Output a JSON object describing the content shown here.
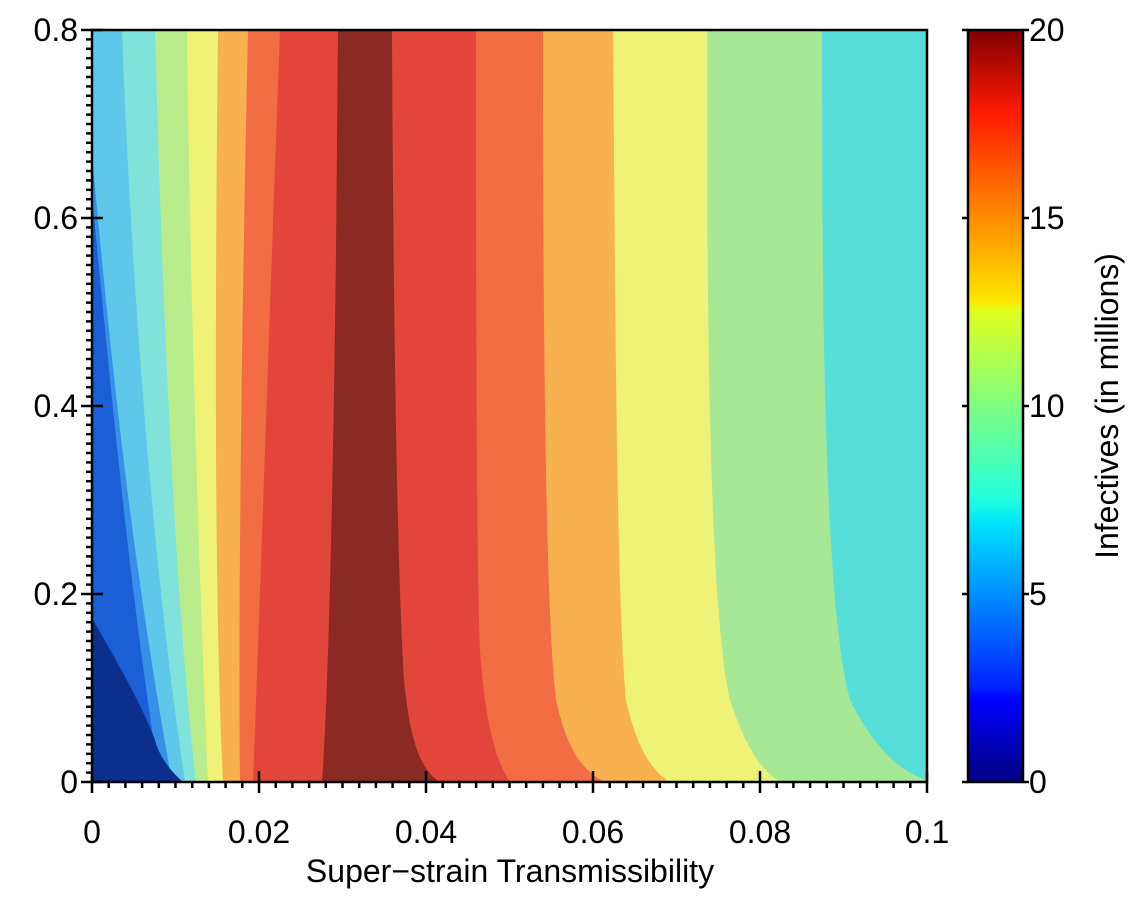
{
  "chart_data": {
    "type": "heatmap",
    "subtype": "filled-contour",
    "title": "",
    "xlabel": "Super−strain Transmissibility",
    "ylabel": "",
    "xlim": [
      0,
      0.1
    ],
    "ylim": [
      0,
      0.8
    ],
    "x_ticks": [
      0,
      0.02,
      0.04,
      0.06,
      0.08,
      0.1
    ],
    "x_tick_labels": [
      "0",
      "0.02",
      "0.04",
      "0.06",
      "0.08",
      "0.1"
    ],
    "y_ticks": [
      0,
      0.2,
      0.4,
      0.6,
      0.8
    ],
    "y_tick_labels": [
      "0",
      "0.2",
      "0.4",
      "0.6",
      "0.8"
    ],
    "colorbar": {
      "label": "Infectives (in millions)",
      "range": [
        0,
        20
      ],
      "ticks": [
        0,
        5,
        10,
        15,
        20
      ],
      "tick_labels": [
        "0",
        "5",
        "10",
        "15",
        "20"
      ],
      "colormap": "jet",
      "colors": [
        "#0c2f8d",
        "#1a5fd6",
        "#3790e8",
        "#5ec7ea",
        "#7fe3dc",
        "#a6e895",
        "#eef277",
        "#f8b150",
        "#f26d44",
        "#e2463a",
        "#8b2a22"
      ]
    },
    "regions": [
      {
        "level": 8,
        "color": "#56dfd8",
        "boundary": [
          [
            0.1,
            0.8
          ],
          [
            0.1,
            0.0
          ],
          [
            0.088,
            0.0
          ]
        ]
      },
      {
        "level": 9.5,
        "color": "#a6e895",
        "boundary": [
          [
            0.088,
            0.0
          ],
          [
            0.0875,
            0.8
          ]
        ]
      },
      {
        "level": 11.5,
        "color": "#eef277",
        "boundary": [
          [
            0.074,
            0.0
          ],
          [
            0.0737,
            0.8
          ]
        ]
      },
      {
        "level": 13.5,
        "color": "#f8b150",
        "boundary": [
          [
            0.063,
            0.0
          ],
          [
            0.0636,
            0.8
          ]
        ]
      },
      {
        "level": 16.5,
        "color": "#f26d44",
        "boundary": [
          [
            0.0549,
            0.8
          ],
          [
            0.0545,
            0.0
          ]
        ]
      },
      {
        "level": 17.5,
        "color": "#e2463a",
        "boundary": [
          [
            0.046,
            0.8
          ],
          [
            0.046,
            0.0
          ]
        ]
      },
      {
        "level": 19.5,
        "color": "#8b2a22",
        "boundary_left": [
          [
            0.0295,
            0.0
          ],
          [
            0.0298,
            0.8
          ]
        ],
        "boundary_right": [
          [
            0.0365,
            0.8
          ],
          [
            0.0365,
            0.0
          ]
        ]
      },
      {
        "level": 17.5,
        "color": "#e2463a",
        "boundary": [
          [
            0.0273,
            0.0
          ],
          [
            0.0279,
            0.8
          ]
        ]
      },
      {
        "level": 16.5,
        "color": "#f26d44",
        "boundary": [
          [
            0.0231,
            0.0
          ],
          [
            0.0255,
            0.8
          ]
        ]
      },
      {
        "level": 14.5,
        "color": "#f8b150",
        "boundary": [
          [
            0.021,
            0.0
          ],
          [
            0.0222,
            0.8
          ]
        ]
      },
      {
        "level": 12.5,
        "color": "#eef277",
        "boundary": [
          [
            0.019,
            0.0
          ],
          [
            0.0189,
            0.8
          ]
        ]
      },
      {
        "level": 11,
        "color": "#b9ec8c",
        "boundary": [
          [
            0.0165,
            0.0
          ],
          [
            0.0159,
            0.8
          ]
        ]
      },
      {
        "level": 8.5,
        "color": "#7fe3dc",
        "boundary": [
          [
            0.0155,
            0.0
          ],
          [
            0.0117,
            0.8
          ]
        ]
      },
      {
        "level": 6.5,
        "color": "#5ec7ea",
        "boundary": [
          [
            0.0135,
            0.0
          ],
          [
            0.0078,
            0.8
          ]
        ]
      },
      {
        "level": 4.5,
        "color": "#3790e8",
        "boundary": [
          [
            0.0,
            0.0
          ],
          [
            0.0108,
            0.0
          ],
          [
            0.0,
            0.67
          ]
        ]
      },
      {
        "level": 2.5,
        "color": "#1a5fd6",
        "boundary": [
          [
            0.0,
            0.0
          ],
          [
            0.0108,
            0.0
          ],
          [
            0.0,
            0.67
          ]
        ]
      },
      {
        "level": 0.5,
        "color": "#0c2f8d",
        "boundary": [
          [
            0.0,
            0.18
          ],
          [
            0.0108,
            0.0
          ],
          [
            0.0,
            0.0
          ]
        ]
      }
    ]
  }
}
